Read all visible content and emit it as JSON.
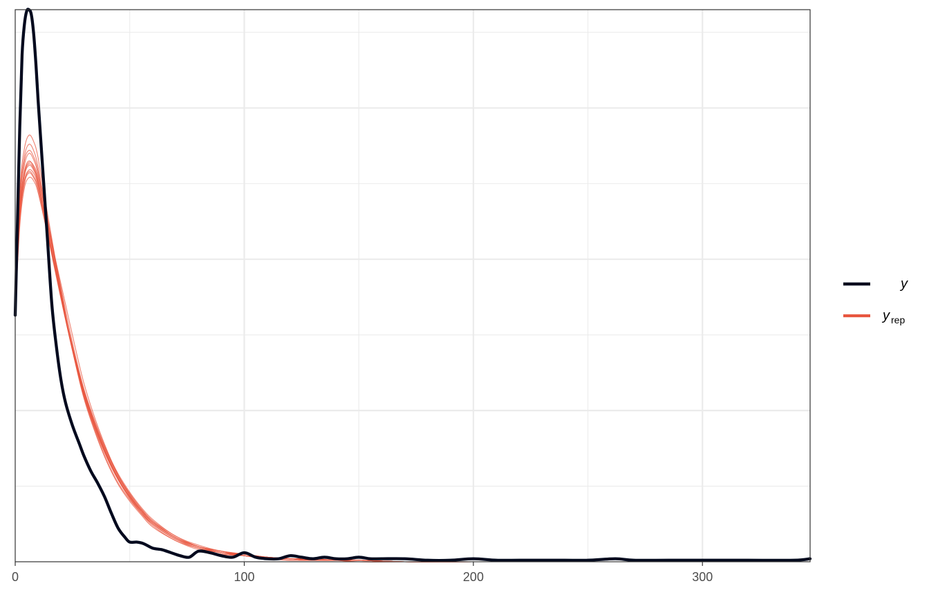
{
  "chart_data": {
    "type": "line",
    "subtype": "density-overlay",
    "xlim": [
      0,
      347
    ],
    "ylim": [
      0,
      0.0365
    ],
    "x_ticks": [
      {
        "value": 0,
        "label": "0"
      },
      {
        "value": 100,
        "label": "100"
      },
      {
        "value": 200,
        "label": "200"
      },
      {
        "value": 300,
        "label": "300"
      }
    ],
    "x_minor_ticks": [
      50,
      150,
      250
    ],
    "y_major_grid": [
      0.01,
      0.02,
      0.03
    ],
    "y_minor_grid": [
      0.005,
      0.015,
      0.025,
      0.035
    ],
    "y_tick_labels_shown": false,
    "grid": true,
    "legend_position": "right",
    "legend": [
      {
        "key": "y",
        "label": "y",
        "subscript": "",
        "color": "#030a1e"
      },
      {
        "key": "yrep",
        "label": "y",
        "subscript": "rep",
        "color": "#e8563f"
      }
    ],
    "series": [
      {
        "key": "y",
        "color": "#030a1e",
        "x": [
          0,
          1,
          2,
          3,
          4,
          5,
          6,
          7,
          8,
          9,
          10,
          12,
          14,
          16,
          18,
          20,
          22,
          25,
          28,
          30,
          33,
          36,
          39,
          42,
          45,
          48,
          50,
          53,
          56,
          60,
          64,
          68,
          72,
          76,
          80,
          85,
          90,
          95,
          100,
          105,
          110,
          115,
          120,
          125,
          130,
          135,
          140,
          145,
          150,
          155,
          160,
          170,
          180,
          190,
          200,
          210,
          220,
          230,
          240,
          250,
          262,
          270,
          285,
          300,
          320,
          340,
          347
        ],
        "y": [
          0.0163,
          0.0225,
          0.0288,
          0.0335,
          0.0355,
          0.0364,
          0.0365,
          0.0362,
          0.035,
          0.033,
          0.0305,
          0.026,
          0.0215,
          0.017,
          0.0142,
          0.012,
          0.0105,
          0.009,
          0.0078,
          0.007,
          0.006,
          0.0052,
          0.0043,
          0.0032,
          0.0022,
          0.0016,
          0.0013,
          0.0013,
          0.0012,
          0.0009,
          0.0008,
          0.0006,
          0.0004,
          0.0003,
          0.0007,
          0.0006,
          0.0004,
          0.0003,
          0.0006,
          0.0003,
          0.0002,
          0.0002,
          0.0004,
          0.0003,
          0.0002,
          0.0003,
          0.0002,
          0.0002,
          0.0003,
          0.0002,
          0.0002,
          0.0002,
          0.0001,
          0.0001,
          0.0002,
          0.0001,
          0.0001,
          0.0001,
          0.0001,
          0.0001,
          0.0002,
          0.0001,
          0.0001,
          0.0001,
          0.0001,
          0.0001,
          0.0002
        ]
      }
    ],
    "replicates": {
      "key": "yrep",
      "color": "#e8563f",
      "x": [
        0,
        2,
        4,
        6,
        8,
        10,
        14,
        18,
        22,
        26,
        30,
        35,
        40,
        45,
        50,
        55,
        60,
        70,
        80,
        90,
        100,
        110,
        120,
        130,
        140,
        150,
        170,
        200,
        250,
        300,
        347
      ],
      "curves": [
        [
          0.0168,
          0.023,
          0.0255,
          0.0262,
          0.0259,
          0.025,
          0.022,
          0.019,
          0.016,
          0.0133,
          0.011,
          0.0088,
          0.007,
          0.0055,
          0.0043,
          0.0034,
          0.0026,
          0.0016,
          0.001,
          0.0006,
          0.0004,
          0.0003,
          0.0002,
          0.0001,
          0.0001,
          0.0001,
          0.0,
          0.0,
          0.0,
          0.0,
          0.0
        ],
        [
          0.017,
          0.0237,
          0.0262,
          0.027,
          0.0266,
          0.0256,
          0.0225,
          0.0193,
          0.0162,
          0.0134,
          0.011,
          0.0087,
          0.0069,
          0.0054,
          0.0042,
          0.0033,
          0.0025,
          0.0015,
          0.0009,
          0.0006,
          0.0004,
          0.0002,
          0.0002,
          0.0001,
          0.0001,
          0.0001,
          0.0,
          0.0,
          0.0,
          0.0,
          0.0
        ],
        [
          0.0165,
          0.0225,
          0.025,
          0.0257,
          0.0254,
          0.0246,
          0.0218,
          0.0189,
          0.016,
          0.0134,
          0.0112,
          0.009,
          0.0072,
          0.0057,
          0.0045,
          0.0035,
          0.0027,
          0.0017,
          0.001,
          0.0006,
          0.0004,
          0.0003,
          0.0002,
          0.0001,
          0.0001,
          0.0001,
          0.0,
          0.0,
          0.0,
          0.0,
          0.0
        ],
        [
          0.0172,
          0.0242,
          0.0268,
          0.0276,
          0.0272,
          0.0261,
          0.0228,
          0.0195,
          0.0163,
          0.0134,
          0.0109,
          0.0086,
          0.0067,
          0.0052,
          0.0041,
          0.0032,
          0.0024,
          0.0014,
          0.0009,
          0.0005,
          0.0004,
          0.0002,
          0.0001,
          0.0001,
          0.0001,
          0.0,
          0.0,
          0.0,
          0.0,
          0.0,
          0.0
        ],
        [
          0.0166,
          0.0228,
          0.0252,
          0.0259,
          0.0257,
          0.0249,
          0.0223,
          0.0197,
          0.017,
          0.0143,
          0.0118,
          0.0094,
          0.0074,
          0.0057,
          0.0044,
          0.0034,
          0.0026,
          0.0016,
          0.001,
          0.0006,
          0.0005,
          0.0003,
          0.0002,
          0.0002,
          0.0001,
          0.0001,
          0.0,
          0.0,
          0.0,
          0.0,
          0.0
        ],
        [
          0.0169,
          0.0233,
          0.0258,
          0.0265,
          0.0261,
          0.0252,
          0.0222,
          0.0191,
          0.0161,
          0.0135,
          0.0112,
          0.0089,
          0.0071,
          0.0056,
          0.0044,
          0.0034,
          0.0026,
          0.0016,
          0.001,
          0.0007,
          0.0004,
          0.0003,
          0.0002,
          0.0001,
          0.0001,
          0.0001,
          0.0,
          0.0,
          0.0,
          0.0,
          0.0
        ],
        [
          0.0164,
          0.0222,
          0.0247,
          0.0254,
          0.0252,
          0.0244,
          0.0217,
          0.0188,
          0.016,
          0.0135,
          0.0113,
          0.0091,
          0.0073,
          0.0058,
          0.0046,
          0.0036,
          0.0028,
          0.0017,
          0.0011,
          0.0007,
          0.0005,
          0.0003,
          0.0002,
          0.0001,
          0.0001,
          0.0001,
          0.0,
          0.0,
          0.0,
          0.0,
          0.0
        ],
        [
          0.0171,
          0.0239,
          0.0265,
          0.0272,
          0.0268,
          0.0258,
          0.0226,
          0.0193,
          0.0162,
          0.0134,
          0.011,
          0.0088,
          0.0069,
          0.0054,
          0.0042,
          0.0032,
          0.0025,
          0.0015,
          0.0009,
          0.0006,
          0.0004,
          0.0002,
          0.0002,
          0.0001,
          0.0001,
          0.0,
          0.0,
          0.0,
          0.0,
          0.0,
          0.0
        ],
        [
          0.0167,
          0.0231,
          0.0256,
          0.0263,
          0.026,
          0.0251,
          0.0221,
          0.019,
          0.0161,
          0.0135,
          0.0111,
          0.0089,
          0.007,
          0.0055,
          0.0043,
          0.0034,
          0.0026,
          0.0016,
          0.001,
          0.0007,
          0.0005,
          0.0003,
          0.0002,
          0.0001,
          0.0001,
          0.0001,
          0.0,
          0.0,
          0.0,
          0.0,
          0.0
        ],
        [
          0.0173,
          0.0246,
          0.0273,
          0.0282,
          0.0278,
          0.0267,
          0.0231,
          0.0196,
          0.0163,
          0.0133,
          0.0108,
          0.0085,
          0.0066,
          0.0051,
          0.004,
          0.0031,
          0.0023,
          0.0014,
          0.0008,
          0.0005,
          0.0004,
          0.0002,
          0.0001,
          0.0001,
          0.0001,
          0.0,
          0.0,
          0.0,
          0.0,
          0.0,
          0.0
        ],
        [
          0.0168,
          0.0232,
          0.0257,
          0.0264,
          0.0262,
          0.0254,
          0.0226,
          0.0196,
          0.0166,
          0.0138,
          0.0114,
          0.009,
          0.0071,
          0.0055,
          0.0043,
          0.0033,
          0.0025,
          0.0015,
          0.001,
          0.0006,
          0.0005,
          0.0003,
          0.0002,
          0.0001,
          0.0001,
          0.0001,
          0.0,
          0.0,
          0.0,
          0.0,
          0.0
        ],
        [
          0.0166,
          0.0227,
          0.0251,
          0.0258,
          0.0255,
          0.0247,
          0.0219,
          0.019,
          0.0162,
          0.0137,
          0.0114,
          0.0092,
          0.0073,
          0.0057,
          0.0045,
          0.0035,
          0.0027,
          0.0016,
          0.001,
          0.0007,
          0.0004,
          0.0003,
          0.0002,
          0.0002,
          0.0001,
          0.0001,
          0.0,
          0.0,
          0.0,
          0.0,
          0.0
        ]
      ]
    }
  }
}
